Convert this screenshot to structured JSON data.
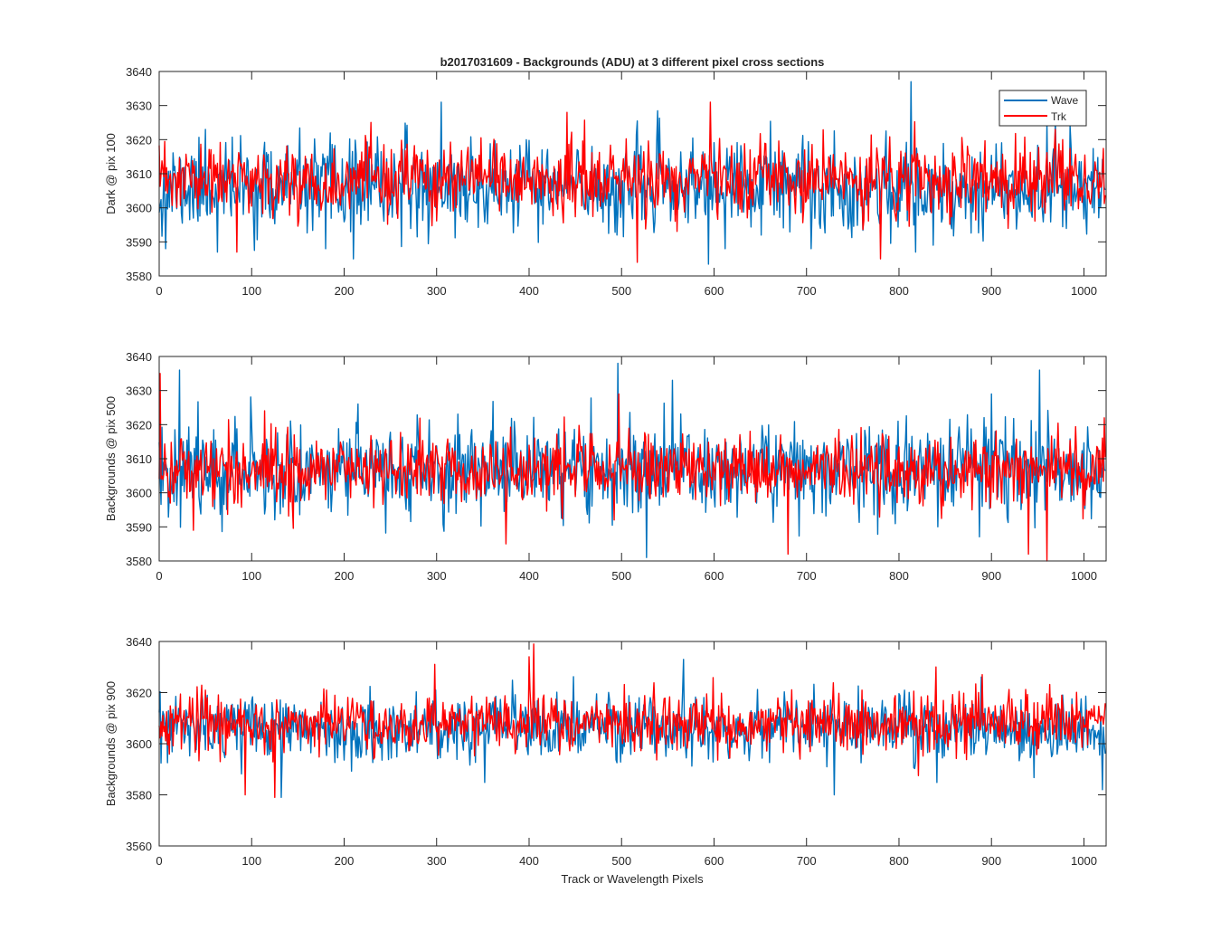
{
  "figure": {
    "title": "b2017031609 - Backgrounds (ADU) at 3 different pixel cross sections"
  },
  "colors": {
    "Wave": "#0072BD",
    "Trk": "#FF0000",
    "axis": "#262626",
    "background": "#ffffff"
  },
  "chart_data": [
    {
      "type": "line",
      "title": "b2017031609 - Backgrounds (ADU) at 3 different pixel cross sections",
      "xlabel": "",
      "ylabel": "Dark @ pix 100",
      "xlim": [
        0,
        1024
      ],
      "ylim": [
        3580,
        3640
      ],
      "x_ticks": [
        0,
        100,
        200,
        300,
        400,
        500,
        600,
        700,
        800,
        900,
        1000
      ],
      "y_ticks": [
        3580,
        3590,
        3600,
        3610,
        3620,
        3630,
        3640
      ],
      "x_count": 1024,
      "grid": false,
      "legend": {
        "entries": [
          "Wave",
          "Trk"
        ],
        "location": "top-right"
      },
      "series": [
        {
          "name": "Wave",
          "color": "#0072BD",
          "mean": 3606,
          "sd": 6.5,
          "seed": 11,
          "spikes": [
            [
              7,
              3588
            ],
            [
              50,
              3623
            ],
            [
              63,
              3587
            ],
            [
              180,
              3588
            ],
            [
              210,
              3585
            ],
            [
              305,
              3631
            ],
            [
              495,
              3592
            ],
            [
              612,
              3588
            ],
            [
              705,
              3588
            ],
            [
              813,
              3637
            ],
            [
              818,
              3587
            ],
            [
              960,
              3625
            ],
            [
              985,
              3624
            ]
          ]
        },
        {
          "name": "Trk",
          "color": "#FF0000",
          "mean": 3608,
          "sd": 5.2,
          "seed": 23,
          "spikes": [
            [
              84,
              3587
            ],
            [
              441,
              3628
            ],
            [
              517,
              3584
            ],
            [
              596,
              3631
            ],
            [
              780,
              3585
            ],
            [
              969,
              3623
            ]
          ]
        }
      ]
    },
    {
      "type": "line",
      "title": "",
      "xlabel": "",
      "ylabel": "Backgrounds @ pix 500",
      "xlim": [
        0,
        1024
      ],
      "ylim": [
        3580,
        3640
      ],
      "x_ticks": [
        0,
        100,
        200,
        300,
        400,
        500,
        600,
        700,
        800,
        900,
        1000
      ],
      "y_ticks": [
        3580,
        3590,
        3600,
        3610,
        3620,
        3630,
        3640
      ],
      "x_count": 1024,
      "grid": false,
      "legend": null,
      "series": [
        {
          "name": "Wave",
          "color": "#0072BD",
          "mean": 3607,
          "sd": 6.8,
          "seed": 37,
          "spikes": [
            [
              22,
              3636
            ],
            [
              496,
              3638
            ],
            [
              527,
              3581
            ],
            [
              555,
              3633
            ],
            [
              900,
              3629
            ],
            [
              952,
              3636
            ]
          ]
        },
        {
          "name": "Trk",
          "color": "#FF0000",
          "mean": 3607,
          "sd": 5.2,
          "seed": 41,
          "spikes": [
            [
              1,
              3635
            ],
            [
              37,
              3589
            ],
            [
              375,
              3585
            ],
            [
              497,
              3629
            ],
            [
              680,
              3582
            ],
            [
              940,
              3582
            ],
            [
              960,
              3580
            ],
            [
              1022,
              3622
            ]
          ]
        }
      ]
    },
    {
      "type": "line",
      "title": "",
      "xlabel": "Track or Wavelength Pixels",
      "ylabel": "Backgrounds @ pix 900",
      "xlim": [
        0,
        1024
      ],
      "ylim": [
        3560,
        3640
      ],
      "x_ticks": [
        0,
        100,
        200,
        300,
        400,
        500,
        600,
        700,
        800,
        900,
        1000
      ],
      "y_ticks": [
        3560,
        3580,
        3600,
        3620,
        3640
      ],
      "x_count": 1024,
      "grid": false,
      "legend": null,
      "series": [
        {
          "name": "Wave",
          "color": "#0072BD",
          "mean": 3606,
          "sd": 6.2,
          "seed": 53,
          "spikes": [
            [
              132,
              3579
            ],
            [
              567,
              3633
            ],
            [
              730,
              3580
            ],
            [
              1020,
              3582
            ]
          ]
        },
        {
          "name": "Trk",
          "color": "#FF0000",
          "mean": 3608,
          "sd": 5.6,
          "seed": 67,
          "spikes": [
            [
              93,
              3580
            ],
            [
              125,
              3579
            ],
            [
              400,
              3634
            ],
            [
              405,
              3639
            ],
            [
              840,
              3630
            ],
            [
              890,
              3627
            ]
          ]
        }
      ]
    }
  ]
}
